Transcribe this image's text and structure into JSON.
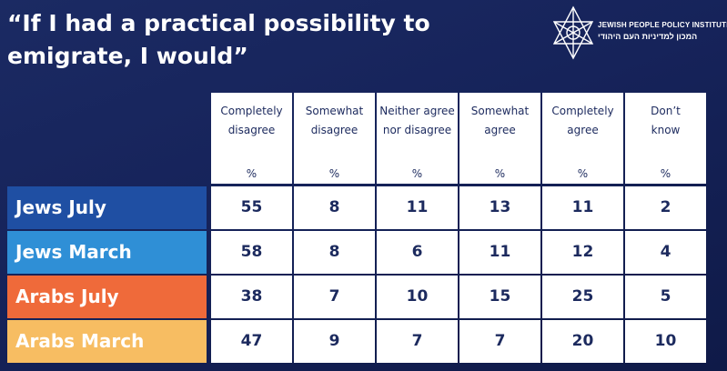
{
  "header": {
    "title": "“If I had a practical possibility to emigrate, I would”",
    "logo_text_en": "JEWISH PEOPLE POLICY INSTITUTE",
    "logo_text_he": "המכון למדיניות העם היהודי"
  },
  "colors": {
    "jews_july": "#1f4fa3",
    "jews_march": "#2f8fd6",
    "arabs_july": "#ef6a3a",
    "arabs_march": "#f7bd62",
    "text_dark": "#1c2a5e"
  },
  "chart_data": {
    "type": "table",
    "title": "“If I had a practical possibility to emigrate, I would”",
    "columns": [
      {
        "lines": [
          "Completely",
          "disagree"
        ],
        "unit": "%"
      },
      {
        "lines": [
          "Somewhat",
          "disagree"
        ],
        "unit": "%"
      },
      {
        "lines": [
          "Neither agree",
          "nor disagree"
        ],
        "unit": "%"
      },
      {
        "lines": [
          "Somewhat",
          "agree"
        ],
        "unit": "%"
      },
      {
        "lines": [
          "Completely",
          "agree"
        ],
        "unit": "%"
      },
      {
        "lines": [
          "Don’t",
          "know"
        ],
        "unit": "%"
      }
    ],
    "rows": [
      {
        "label": "Jews July",
        "values": [
          55,
          8,
          11,
          13,
          11,
          2
        ]
      },
      {
        "label": "Jews March",
        "values": [
          58,
          8,
          6,
          11,
          12,
          4
        ]
      },
      {
        "label": "Arabs July",
        "values": [
          38,
          7,
          10,
          15,
          25,
          5
        ]
      },
      {
        "label": "Arabs March",
        "values": [
          47,
          9,
          7,
          7,
          20,
          10
        ]
      }
    ]
  }
}
